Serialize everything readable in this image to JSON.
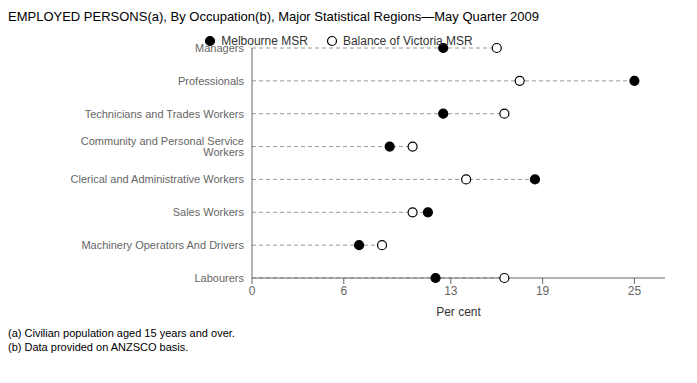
{
  "chart_data": {
    "type": "dot",
    "title": "EMPLOYED PERSONS(a), By Occupation(b), Major Statistical Regions—May Quarter 2009",
    "xlabel": "Per cent",
    "footnotes": [
      "(a) Civilian population aged 15 years and over.",
      "(b) Data provided on ANZSCO basis."
    ],
    "categories": [
      "Labourers",
      "Machinery Operators And Drivers",
      "Sales Workers",
      "Clerical and Administrative Workers",
      "Community and Personal Service Workers",
      "Technicians and Trades Workers",
      "Professionals",
      "Managers"
    ],
    "series": [
      {
        "name": "Melbourne MSR",
        "color": "#000000",
        "marker": "filled",
        "values": [
          12.0,
          7.0,
          11.5,
          18.5,
          9.0,
          12.5,
          25.0,
          12.5
        ]
      },
      {
        "name": "Balance of Victoria MSR",
        "color": "#000000",
        "marker": "open",
        "values": [
          16.5,
          8.5,
          10.5,
          14.0,
          10.5,
          16.5,
          17.5,
          16.0
        ]
      }
    ],
    "xlim": [
      0,
      27
    ],
    "xticks": [
      0,
      6,
      13,
      19,
      25
    ],
    "legend": "top"
  }
}
